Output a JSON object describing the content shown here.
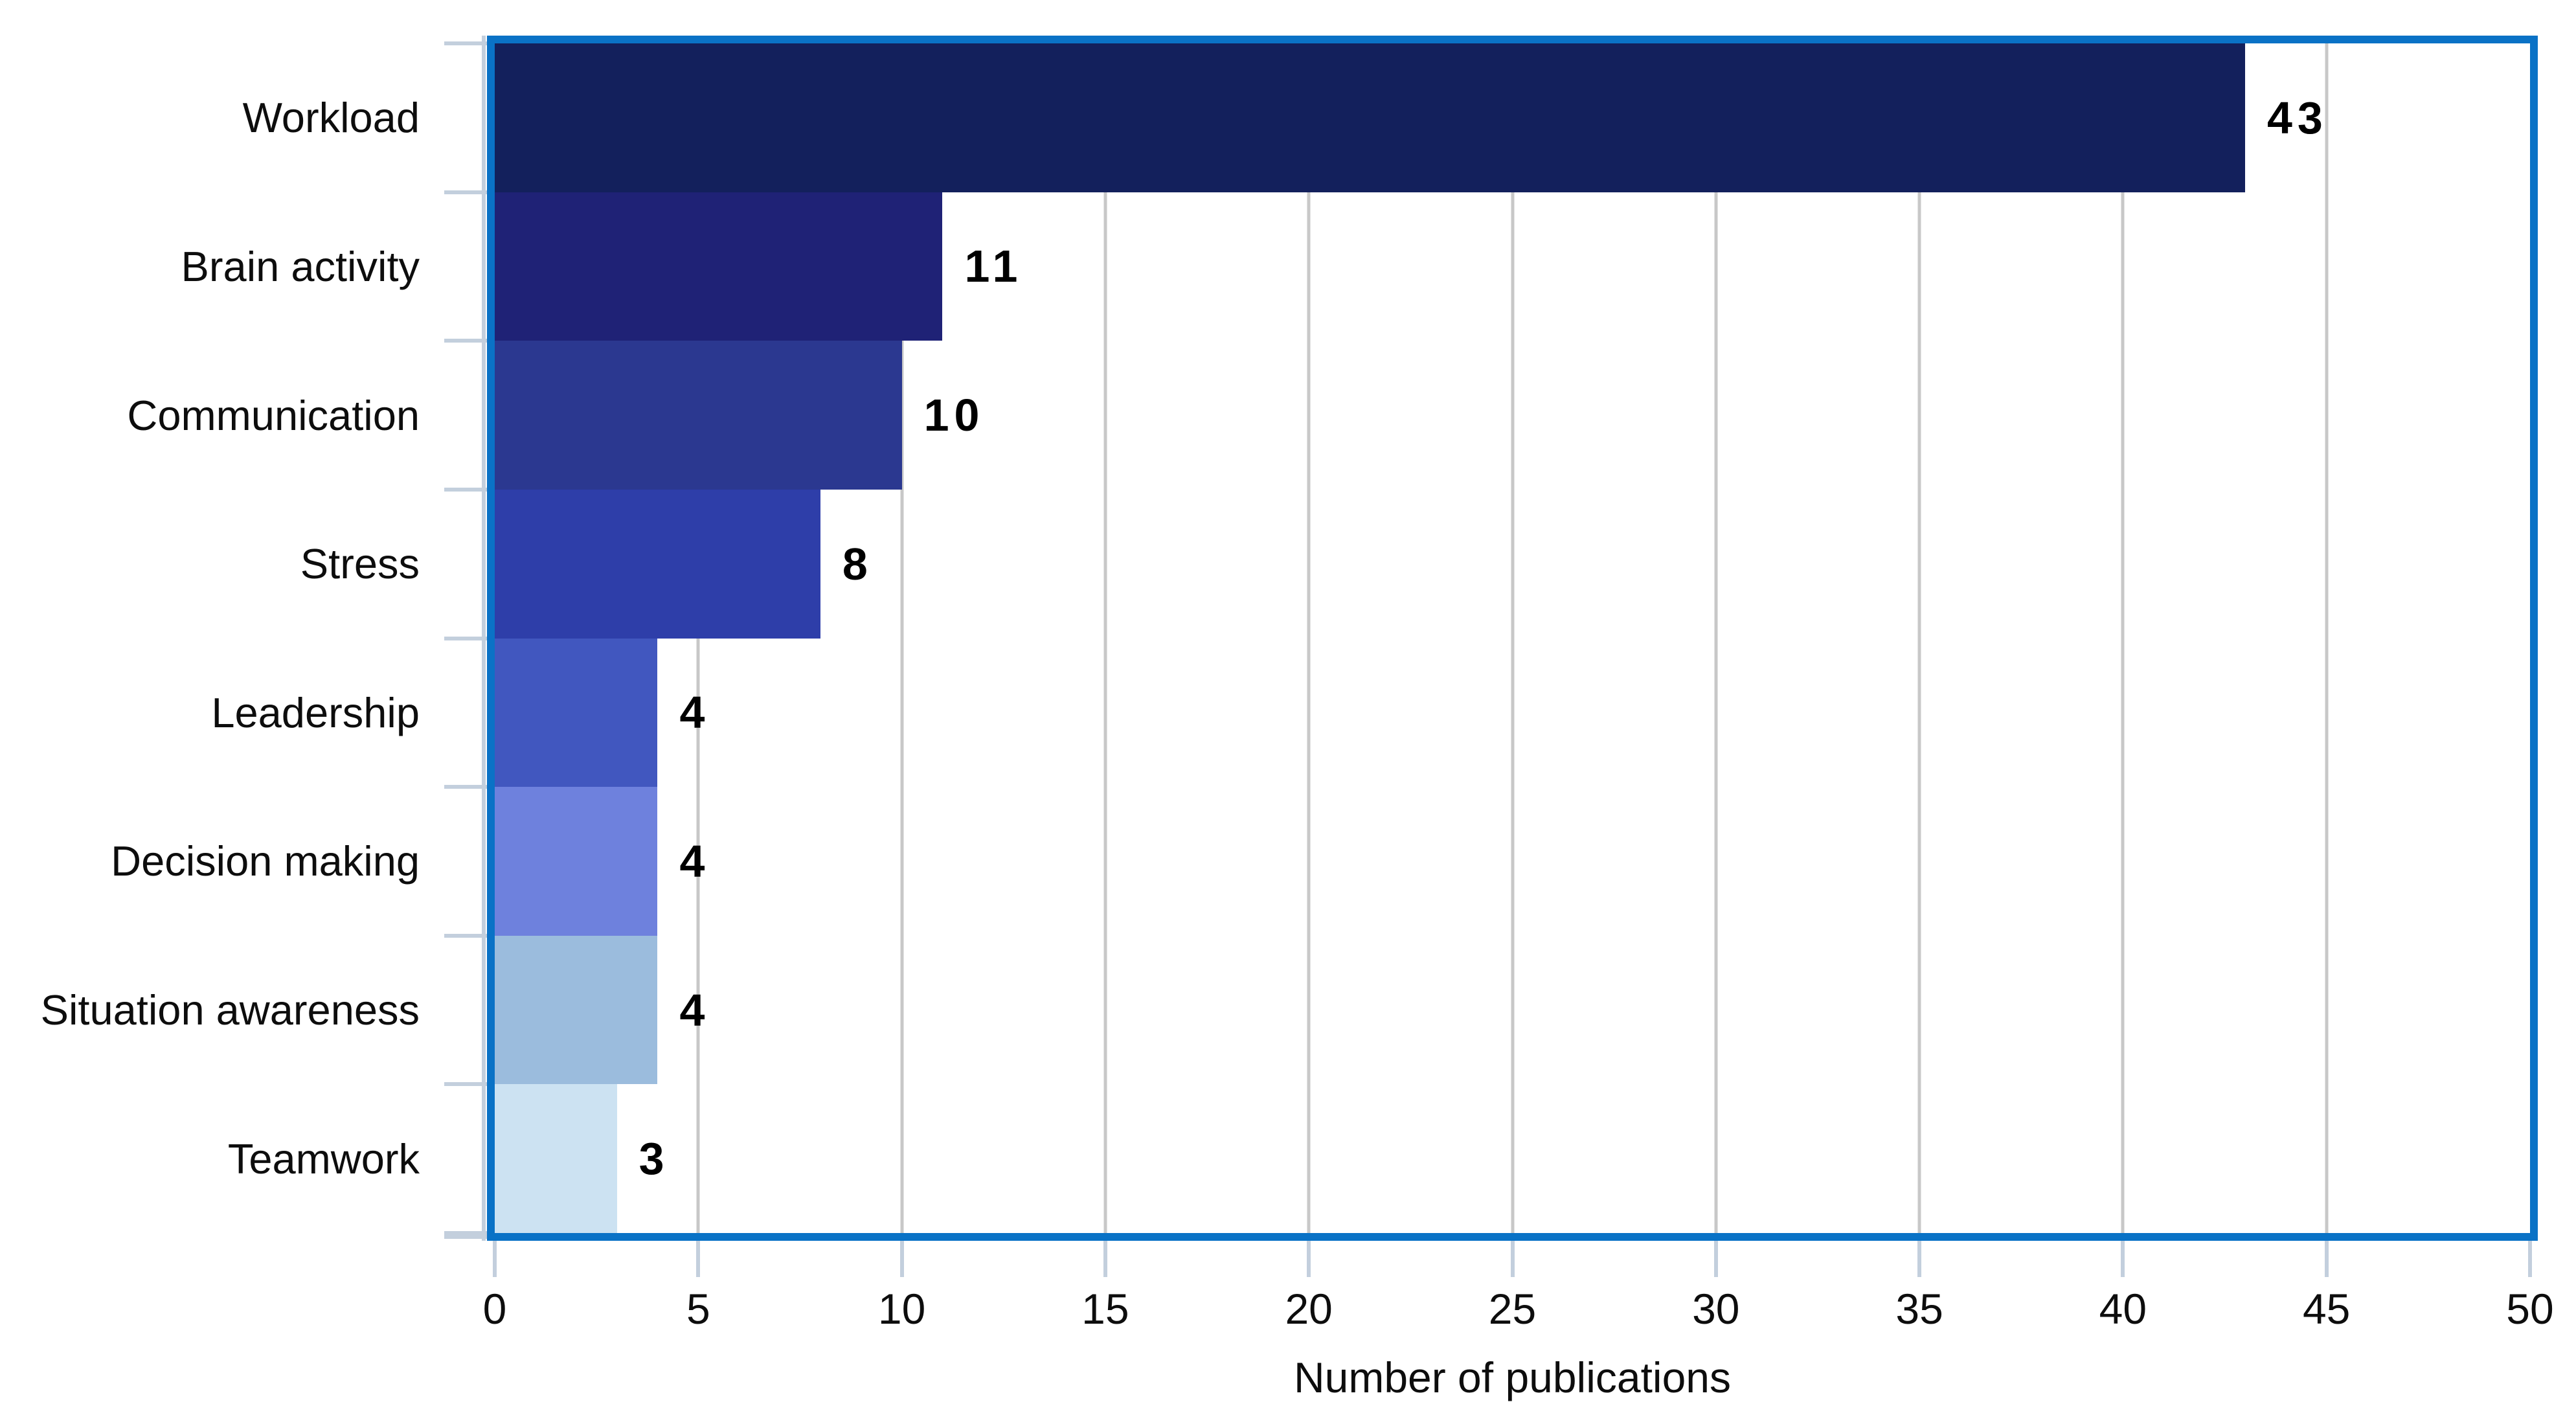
{
  "chart_data": {
    "type": "bar",
    "orientation": "horizontal",
    "title": "",
    "xlabel": "Number of publications",
    "ylabel": "",
    "categories": [
      "Workload",
      "Brain activity",
      "Communication",
      "Stress",
      "Leadership",
      "Decision making",
      "Situation awareness",
      "Teamwork"
    ],
    "values": [
      43,
      11,
      10,
      8,
      4,
      4,
      4,
      3
    ],
    "value_labels": [
      "43",
      "11",
      "10",
      "8",
      "4",
      "4",
      "4",
      "3"
    ],
    "bar_colors": [
      "#13205c",
      "#1f2276",
      "#2b3890",
      "#2e3ea9",
      "#4157bf",
      "#6e81dd",
      "#9bbcdd",
      "#cce2f2"
    ],
    "xlim": [
      0,
      50
    ],
    "x_ticks": [
      0,
      5,
      10,
      15,
      20,
      25,
      30,
      35,
      40,
      45,
      50
    ],
    "grid": "vertical gridlines every 5 units, drawn behind bars",
    "legend": "none"
  },
  "colors": {
    "frame": "#0a72c6",
    "gridline": "#c8c8c8",
    "axis": "#c3cfdd",
    "text": "#0d0d0d",
    "background": "#ffffff"
  }
}
